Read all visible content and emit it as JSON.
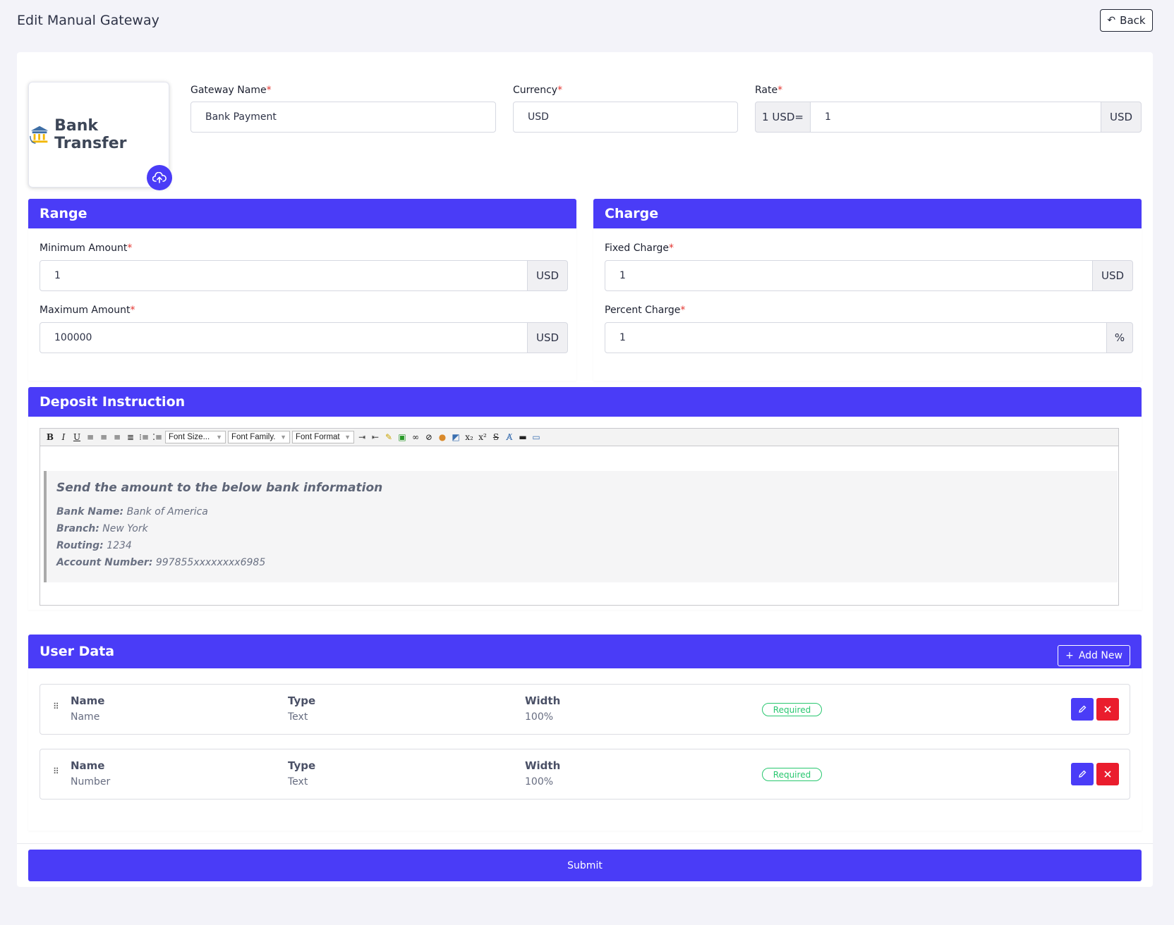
{
  "page": {
    "title": "Edit Manual Gateway",
    "back_label": "Back"
  },
  "logo": {
    "text": "Bank Transfer"
  },
  "gateway": {
    "name_label": "Gateway Name",
    "name_value": "Bank Payment",
    "currency_label": "Currency",
    "currency_value": "USD",
    "rate_label": "Rate",
    "rate_prefix": "1 USD=",
    "rate_value": "1",
    "rate_suffix": "USD",
    "required_mark": "*"
  },
  "range": {
    "title": "Range",
    "min_label": "Minimum Amount",
    "min_value": "1",
    "min_suffix": "USD",
    "max_label": "Maximum Amount",
    "max_value": "100000",
    "max_suffix": "USD"
  },
  "charge": {
    "title": "Charge",
    "fixed_label": "Fixed Charge",
    "fixed_value": "1",
    "fixed_suffix": "USD",
    "percent_label": "Percent Charge",
    "percent_value": "1",
    "percent_suffix": "%"
  },
  "deposit": {
    "title": "Deposit Instruction",
    "toolbar": {
      "font_size": "Font Size...",
      "font_family": "Font Family.",
      "font_format": "Font Format"
    },
    "heading": "Send the amount to the below bank information",
    "lines": [
      {
        "key": "Bank Name:",
        "value": " Bank of America"
      },
      {
        "key": "Branch:",
        "value": " New York"
      },
      {
        "key": "Routing:",
        "value": " 1234"
      },
      {
        "key": "Account Number:",
        "value": " 997855xxxxxxxx6985"
      }
    ]
  },
  "user_data": {
    "title": "User Data",
    "add_new_label": "Add New",
    "rows": [
      {
        "name_h": "Name",
        "name_v": "Name",
        "type_h": "Type",
        "type_v": "Text",
        "width_h": "Width",
        "width_v": "100%",
        "badge": "Required"
      },
      {
        "name_h": "Name",
        "name_v": "Number",
        "type_h": "Type",
        "type_v": "Text",
        "width_h": "Width",
        "width_v": "100%",
        "badge": "Required"
      }
    ]
  },
  "submit_label": "Submit",
  "colors": {
    "primary": "#4a3cf7",
    "danger": "#ea1d2d",
    "success": "#28c76f",
    "background": "#f3f3f9"
  }
}
